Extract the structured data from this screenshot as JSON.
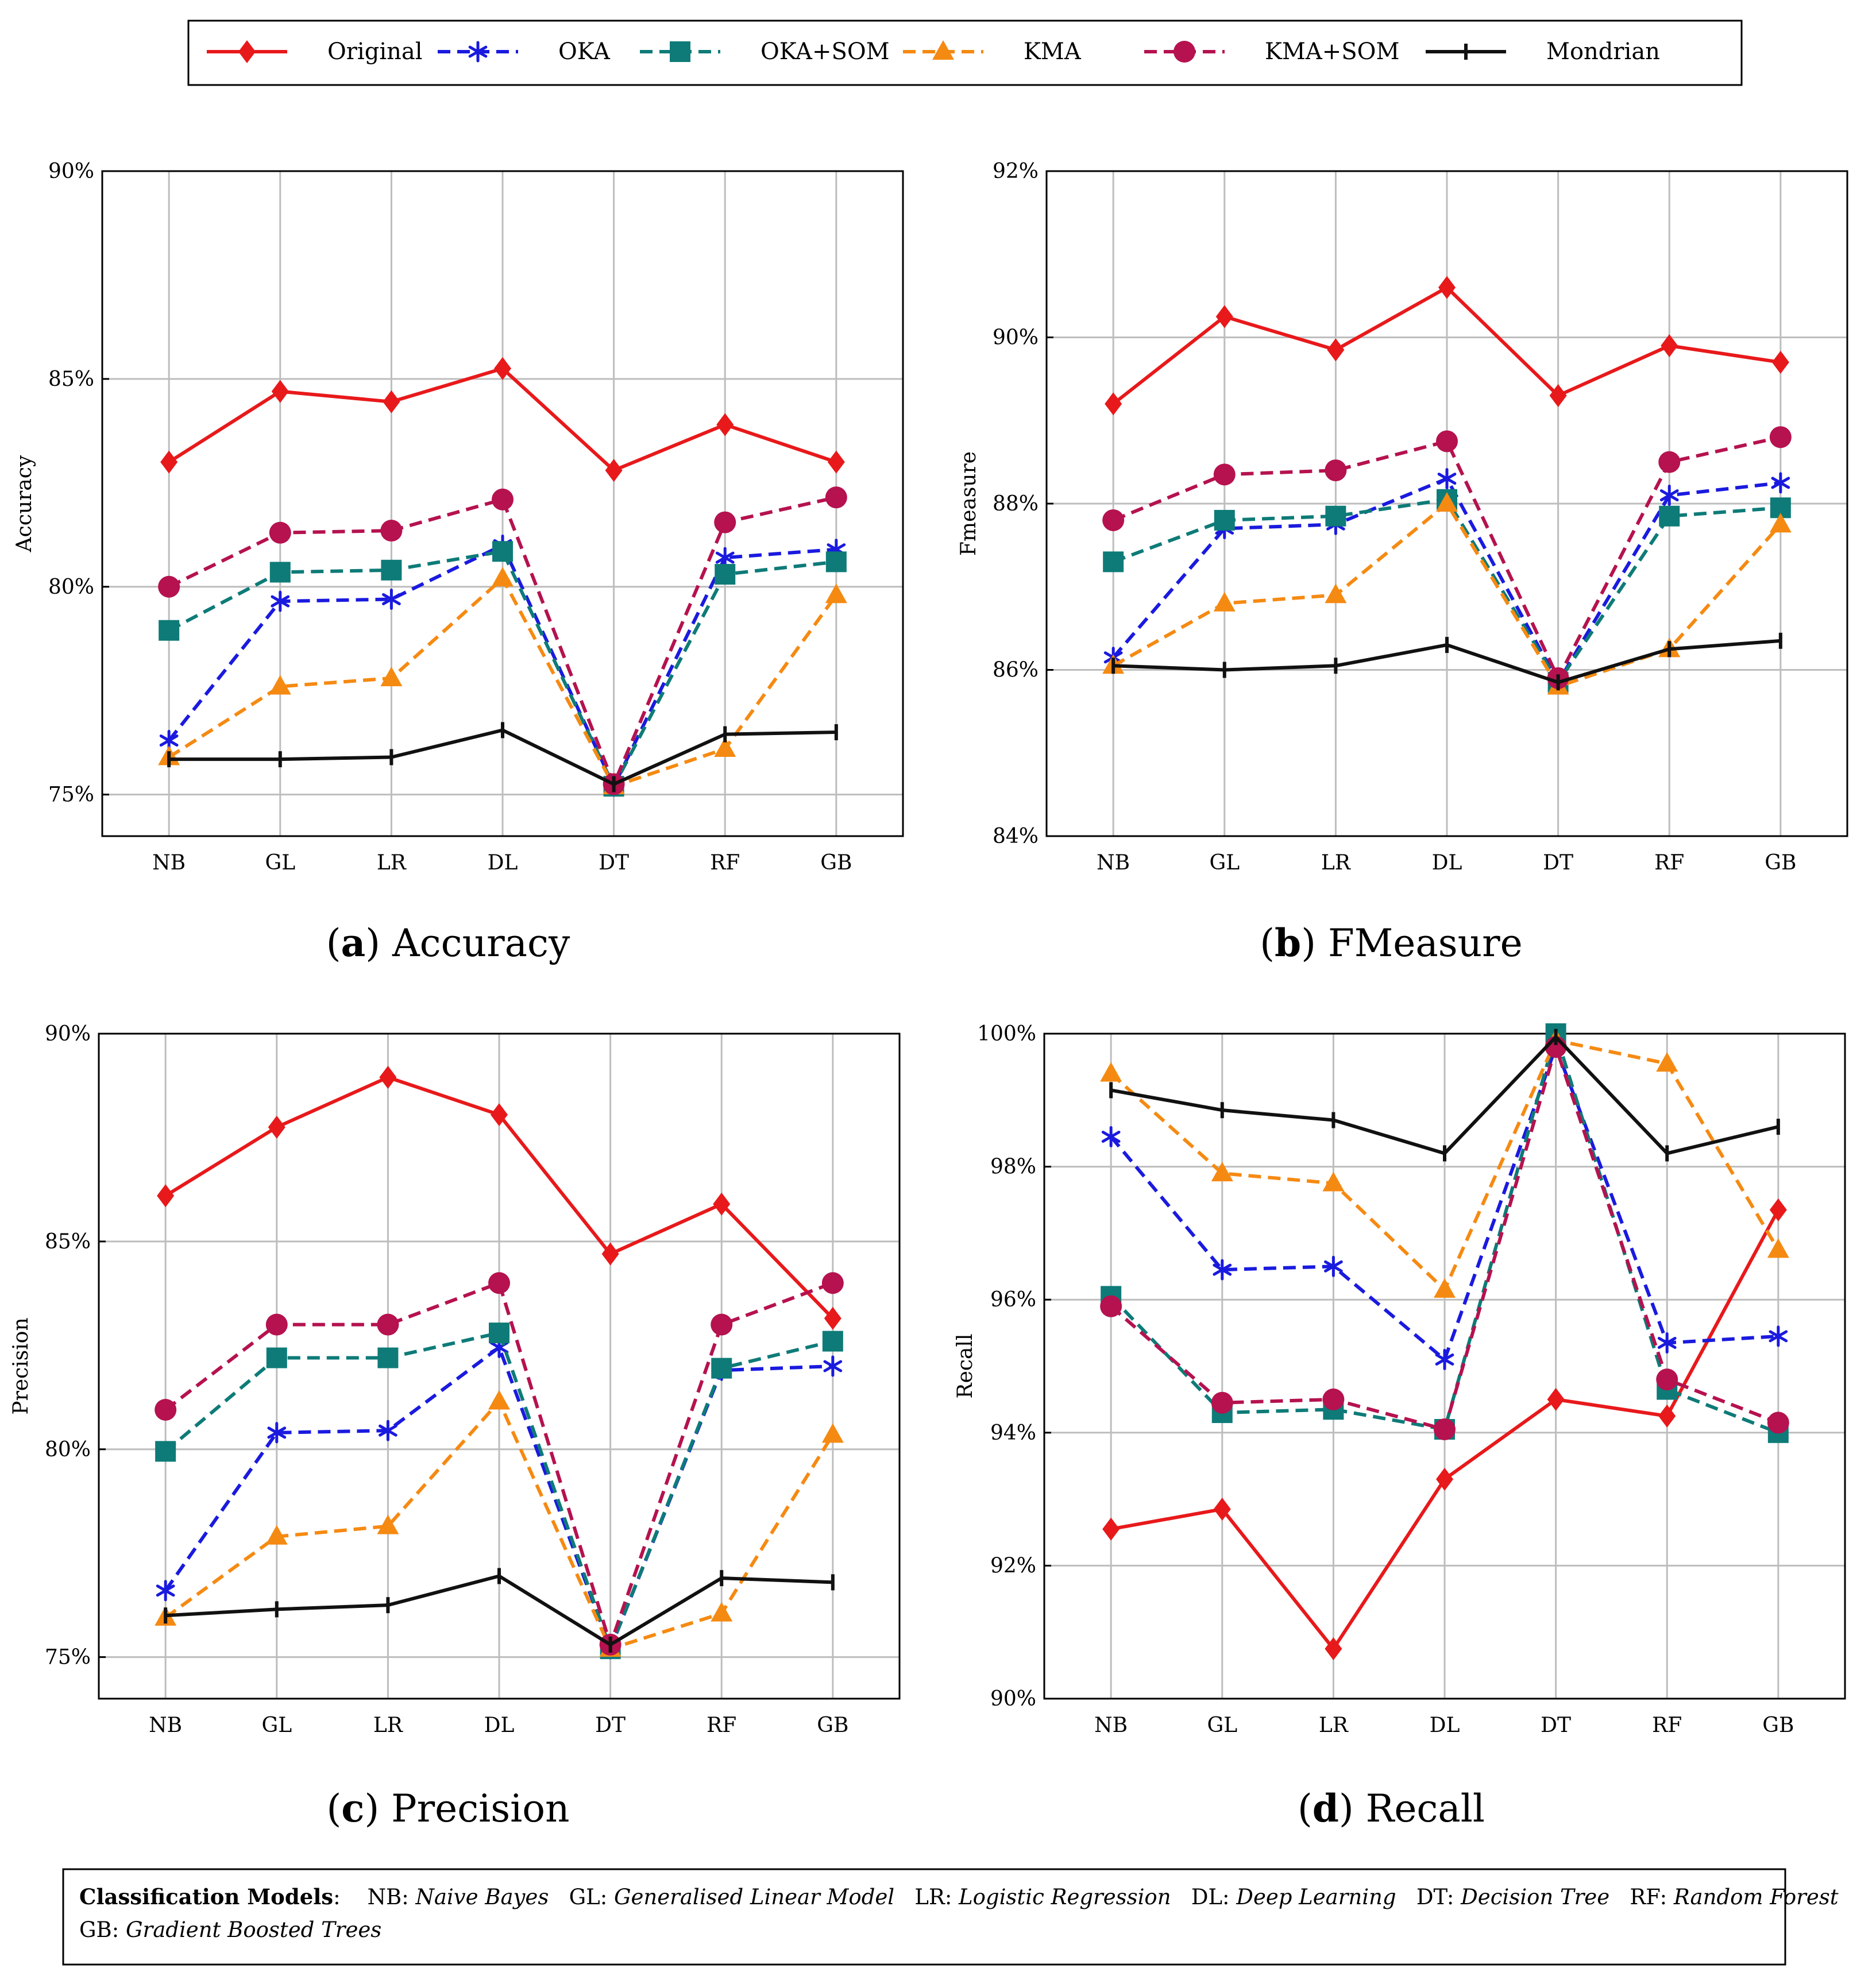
{
  "legend": [
    {
      "name": "Original",
      "color": "#e8191b",
      "dash": "solid",
      "marker": "diamond"
    },
    {
      "name": "OKA",
      "color": "#1a1adf",
      "dash": "dashed",
      "marker": "asterisk"
    },
    {
      "name": "OKA+SOM",
      "color": "#0e7b78",
      "dash": "dashed",
      "marker": "square"
    },
    {
      "name": "KMA",
      "color": "#f58a12",
      "dash": "dashed",
      "marker": "triangle"
    },
    {
      "name": "KMA+SOM",
      "color": "#b5124f",
      "dash": "dashed",
      "marker": "circle"
    },
    {
      "name": "Mondrian",
      "color": "#111111",
      "dash": "solid",
      "marker": "bar"
    }
  ],
  "chart_data": [
    {
      "type": "line",
      "caption_letter": "(a)",
      "caption_text": "Accuracy",
      "ylabel": "Accuracy",
      "categories": [
        "NB",
        "GL",
        "LR",
        "DL",
        "DT",
        "RF",
        "GB"
      ],
      "ylim": [
        74,
        90
      ],
      "yticks": [
        75,
        80,
        85,
        90
      ],
      "ytick_labels": [
        "75%",
        "80%",
        "85%",
        "90%"
      ],
      "grid": true,
      "series": [
        {
          "name": "Original",
          "values": [
            83.0,
            84.7,
            84.45,
            85.25,
            82.8,
            83.9,
            83.0
          ]
        },
        {
          "name": "OKA",
          "values": [
            76.3,
            79.65,
            79.7,
            81.0,
            75.2,
            80.7,
            80.9
          ]
        },
        {
          "name": "OKA+SOM",
          "values": [
            78.95,
            80.35,
            80.4,
            80.85,
            75.2,
            80.3,
            80.6
          ]
        },
        {
          "name": "KMA",
          "values": [
            75.9,
            77.6,
            77.8,
            80.2,
            75.2,
            76.1,
            79.8
          ]
        },
        {
          "name": "KMA+SOM",
          "values": [
            80.0,
            81.3,
            81.35,
            82.1,
            75.25,
            81.55,
            82.15
          ]
        },
        {
          "name": "Mondrian",
          "values": [
            75.85,
            75.85,
            75.9,
            76.55,
            75.25,
            76.45,
            76.5
          ]
        }
      ]
    },
    {
      "type": "line",
      "caption_letter": "(b)",
      "caption_text": "FMeasure",
      "ylabel": "Fmeasure",
      "categories": [
        "NB",
        "GL",
        "LR",
        "DL",
        "DT",
        "RF",
        "GB"
      ],
      "ylim": [
        84,
        92
      ],
      "yticks": [
        84,
        86,
        88,
        90,
        92
      ],
      "ytick_labels": [
        "84%",
        "86%",
        "88%",
        "90%",
        "92%"
      ],
      "grid": true,
      "series": [
        {
          "name": "Original",
          "values": [
            89.2,
            90.25,
            89.85,
            90.6,
            89.3,
            89.9,
            89.7
          ]
        },
        {
          "name": "OKA",
          "values": [
            86.15,
            87.7,
            87.75,
            88.3,
            85.85,
            88.1,
            88.25
          ]
        },
        {
          "name": "OKA+SOM",
          "values": [
            87.3,
            87.8,
            87.85,
            88.05,
            85.85,
            87.85,
            87.95
          ]
        },
        {
          "name": "KMA",
          "values": [
            86.05,
            86.8,
            86.9,
            88.0,
            85.8,
            86.25,
            87.75
          ]
        },
        {
          "name": "KMA+SOM",
          "values": [
            87.8,
            88.35,
            88.4,
            88.75,
            85.9,
            88.5,
            88.8
          ]
        },
        {
          "name": "Mondrian",
          "values": [
            86.05,
            86.0,
            86.05,
            86.3,
            85.85,
            86.25,
            86.35
          ]
        }
      ]
    },
    {
      "type": "line",
      "caption_letter": "(c)",
      "caption_text": "Precision",
      "ylabel": "Precision",
      "categories": [
        "NB",
        "GL",
        "LR",
        "DL",
        "DT",
        "RF",
        "GB"
      ],
      "ylim": [
        74,
        90
      ],
      "yticks": [
        75,
        80,
        85,
        90
      ],
      "ytick_labels": [
        "75%",
        "80%",
        "85%",
        "90%"
      ],
      "grid": true,
      "series": [
        {
          "name": "Original",
          "values": [
            86.1,
            87.75,
            88.95,
            88.05,
            84.7,
            85.9,
            83.15
          ]
        },
        {
          "name": "OKA",
          "values": [
            76.6,
            80.4,
            80.45,
            82.45,
            75.2,
            81.9,
            82.0
          ]
        },
        {
          "name": "OKA+SOM",
          "values": [
            79.95,
            82.2,
            82.2,
            82.8,
            75.2,
            81.95,
            82.6
          ]
        },
        {
          "name": "KMA",
          "values": [
            75.95,
            77.9,
            78.15,
            81.15,
            75.2,
            76.05,
            80.35
          ]
        },
        {
          "name": "KMA+SOM",
          "values": [
            80.95,
            83.0,
            83.0,
            84.0,
            75.3,
            83.0,
            84.0
          ]
        },
        {
          "name": "Mondrian",
          "values": [
            76.0,
            76.15,
            76.25,
            76.95,
            75.3,
            76.9,
            76.8
          ]
        }
      ]
    },
    {
      "type": "line",
      "caption_letter": "(d)",
      "caption_text": "Recall",
      "ylabel": "Recall",
      "categories": [
        "NB",
        "GL",
        "LR",
        "DL",
        "DT",
        "RF",
        "GB"
      ],
      "ylim": [
        90,
        100
      ],
      "yticks": [
        90,
        92,
        94,
        96,
        98,
        100
      ],
      "ytick_labels": [
        "90%",
        "92%",
        "94%",
        "96%",
        "98%",
        "100%"
      ],
      "grid": true,
      "series": [
        {
          "name": "Original",
          "values": [
            92.55,
            92.85,
            90.75,
            93.3,
            94.5,
            94.25,
            97.35
          ]
        },
        {
          "name": "OKA",
          "values": [
            98.45,
            96.45,
            96.5,
            95.1,
            99.8,
            95.35,
            95.45
          ]
        },
        {
          "name": "OKA+SOM",
          "values": [
            96.05,
            94.3,
            94.35,
            94.05,
            100.0,
            94.65,
            94.0
          ]
        },
        {
          "name": "KMA",
          "values": [
            99.4,
            97.9,
            97.75,
            96.15,
            99.9,
            99.55,
            96.75
          ]
        },
        {
          "name": "KMA+SOM",
          "values": [
            95.9,
            94.45,
            94.5,
            94.05,
            99.8,
            94.8,
            94.15
          ]
        },
        {
          "name": "Mondrian",
          "values": [
            99.15,
            98.85,
            98.7,
            98.2,
            99.95,
            98.2,
            98.6
          ]
        }
      ]
    }
  ],
  "footer": {
    "title": "Classification Models",
    "colon": ":",
    "line1": [
      {
        "abbr": "NB:",
        "full": "Naive Bayes"
      },
      {
        "abbr": "GL:",
        "full": "Generalised Linear Model"
      },
      {
        "abbr": "LR:",
        "full": "Logistic Regression"
      },
      {
        "abbr": "DL:",
        "full": "Deep Learning"
      },
      {
        "abbr": "DT:",
        "full": "Decision Tree"
      },
      {
        "abbr": "RF:",
        "full": "Random Forest"
      }
    ],
    "line2": [
      {
        "abbr": "GB:",
        "full": "Gradient Boosted Trees"
      }
    ]
  }
}
